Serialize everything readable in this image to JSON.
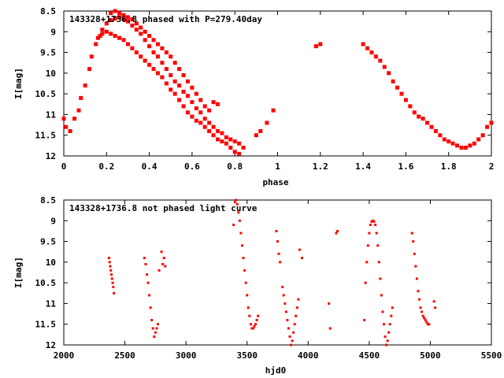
{
  "chart_data": [
    {
      "type": "scatter",
      "title": "143328+1736.8 phased with P=279.40day",
      "xlabel": "phase",
      "ylabel": "I[mag]",
      "xlim": [
        0,
        2
      ],
      "ylim": [
        12,
        8.5
      ],
      "y_inverted": true,
      "xticks": [
        "0",
        "0.2",
        "0.4",
        "0.6",
        "0.8",
        "1",
        "1.2",
        "1.4",
        "1.6",
        "1.8",
        "2"
      ],
      "yticks": [
        "8.5",
        "9",
        "9.5",
        "10",
        "10.5",
        "11",
        "11.5",
        "12"
      ],
      "grid": false,
      "marker_color": "#ff0000",
      "series": [
        {
          "x": [
            0.0,
            0.01,
            0.03,
            0.05,
            0.07,
            0.08,
            0.1,
            0.12,
            0.13,
            0.15,
            0.16,
            0.17,
            0.18,
            0.2,
            0.22,
            0.24,
            0.26,
            0.28,
            0.3,
            0.32,
            0.34,
            0.36,
            0.38,
            0.4,
            0.42,
            0.44,
            0.46,
            0.48,
            0.5,
            0.52,
            0.54,
            0.56,
            0.58,
            0.6,
            0.62,
            0.64,
            0.66,
            0.68,
            0.7,
            0.72,
            0.74,
            0.76,
            0.78,
            0.8,
            0.82,
            0.84,
            0.9,
            0.92,
            0.95,
            0.98,
            1.18,
            1.2,
            1.4,
            1.42,
            1.44,
            1.46,
            1.48,
            1.5,
            1.52,
            1.54,
            1.56,
            1.58,
            1.6,
            1.62,
            1.64,
            1.66,
            1.68,
            1.7,
            1.72,
            1.74,
            1.76,
            1.78,
            1.8,
            1.82,
            1.84,
            1.86,
            1.88,
            1.9,
            1.92,
            1.94,
            1.96,
            1.98,
            2.0
          ],
          "y": [
            11.1,
            11.3,
            11.4,
            11.1,
            10.9,
            10.6,
            10.3,
            9.9,
            9.6,
            9.3,
            9.15,
            9.1,
            9.05,
            9.0,
            9.05,
            9.1,
            9.15,
            9.2,
            9.3,
            9.4,
            9.5,
            9.6,
            9.7,
            9.8,
            9.9,
            10.0,
            10.1,
            10.25,
            10.4,
            10.5,
            10.65,
            10.8,
            10.95,
            11.05,
            11.15,
            11.2,
            11.3,
            11.4,
            11.5,
            11.6,
            11.65,
            11.7,
            11.8,
            11.9,
            11.95,
            11.8,
            11.5,
            11.4,
            11.2,
            10.9,
            9.35,
            9.3,
            9.3,
            9.4,
            9.5,
            9.6,
            9.7,
            9.85,
            10.0,
            10.2,
            10.35,
            10.5,
            10.65,
            10.8,
            10.95,
            11.05,
            11.1,
            11.2,
            11.3,
            11.4,
            11.5,
            11.6,
            11.65,
            11.7,
            11.75,
            11.8,
            11.8,
            11.75,
            11.7,
            11.6,
            11.5,
            11.3,
            11.2
          ]
        },
        {
          "x": [
            0.18,
            0.2,
            0.22,
            0.24,
            0.26,
            0.28,
            0.3,
            0.32,
            0.34,
            0.36,
            0.38,
            0.4,
            0.42,
            0.44,
            0.46,
            0.48,
            0.5,
            0.52,
            0.54,
            0.56,
            0.58,
            0.6,
            0.62,
            0.64,
            0.66,
            0.68,
            0.7,
            0.72,
            0.74,
            0.76,
            0.78,
            0.8,
            0.82
          ],
          "y": [
            8.95,
            8.8,
            8.72,
            8.68,
            8.65,
            8.7,
            8.75,
            8.85,
            8.95,
            9.05,
            9.2,
            9.35,
            9.5,
            9.6,
            9.75,
            9.9,
            10.05,
            10.2,
            10.3,
            10.45,
            10.55,
            10.7,
            10.85,
            10.95,
            11.1,
            11.2,
            11.3,
            11.4,
            11.45,
            11.55,
            11.6,
            11.65,
            11.7
          ]
        },
        {
          "x": [
            0.22,
            0.24,
            0.26,
            0.28,
            0.3,
            0.32,
            0.34,
            0.36,
            0.38,
            0.4,
            0.42,
            0.44,
            0.46,
            0.48,
            0.5,
            0.52,
            0.54,
            0.56,
            0.58,
            0.6,
            0.62,
            0.64,
            0.66,
            0.68,
            0.7,
            0.72
          ],
          "y": [
            8.55,
            8.5,
            8.55,
            8.6,
            8.65,
            8.7,
            8.8,
            8.9,
            9.0,
            9.1,
            9.2,
            9.3,
            9.4,
            9.5,
            9.6,
            9.75,
            9.9,
            10.05,
            10.2,
            10.35,
            10.5,
            10.65,
            10.8,
            10.9,
            10.7,
            10.75
          ]
        }
      ]
    },
    {
      "type": "scatter",
      "title": "143328+1736.8 not phased light curve",
      "xlabel": "hjd0",
      "ylabel": "I[mag]",
      "xlim": [
        2000,
        5500
      ],
      "ylim": [
        12,
        8.5
      ],
      "y_inverted": true,
      "xticks": [
        "2000",
        "2500",
        "3000",
        "3500",
        "4000",
        "4500",
        "5000",
        "5500"
      ],
      "yticks": [
        "8.5",
        "9",
        "9.5",
        "10",
        "10.5",
        "11",
        "11.5",
        "12"
      ],
      "grid": false,
      "marker_color": "#ff0000",
      "series": [
        {
          "x": [
            2370,
            2375,
            2380,
            2385,
            2390,
            2395,
            2400,
            2405,
            2410,
            2660,
            2670,
            2680,
            2690,
            2700,
            2710,
            2720,
            2730,
            2740,
            2750,
            2760,
            2770,
            2780,
            2800,
            2810,
            2820,
            2830,
            3390,
            3400,
            3410,
            3420,
            3430,
            3440,
            3450,
            3460,
            3470,
            3480,
            3490,
            3500,
            3510,
            3520,
            3530,
            3540,
            3550,
            3560,
            3570,
            3580,
            3590,
            3740,
            3750,
            3760,
            3770,
            3790,
            3800,
            3810,
            3820,
            3830,
            3840,
            3850,
            3860,
            3870,
            3880,
            3890,
            3900,
            3910,
            3920,
            3930,
            3950,
            4170,
            4180,
            4230,
            4240,
            4460,
            4470,
            4480,
            4490,
            4500,
            4510,
            4520,
            4530,
            4540,
            4550,
            4560,
            4570,
            4580,
            4590,
            4600,
            4610,
            4620,
            4630,
            4640,
            4650,
            4660,
            4670,
            4680,
            4690,
            4850,
            4860,
            4870,
            4880,
            4890,
            4900,
            4910,
            4920,
            4930,
            4940,
            4950,
            4960,
            4970,
            4980,
            4990,
            5030,
            5040
          ],
          "y": [
            9.9,
            10.0,
            10.1,
            10.2,
            10.3,
            10.4,
            10.5,
            10.6,
            10.75,
            9.9,
            10.05,
            10.3,
            10.5,
            10.8,
            11.1,
            11.4,
            11.6,
            11.8,
            11.7,
            11.6,
            11.5,
            10.2,
            9.75,
            10.05,
            9.9,
            10.1,
            9.1,
            8.55,
            8.5,
            8.6,
            8.8,
            9.0,
            9.3,
            9.6,
            9.9,
            10.2,
            10.5,
            10.8,
            11.1,
            11.3,
            11.5,
            11.6,
            11.6,
            11.55,
            11.5,
            11.4,
            11.3,
            9.25,
            9.5,
            9.8,
            10.0,
            10.6,
            10.8,
            11.0,
            11.2,
            11.4,
            11.6,
            11.8,
            12.0,
            11.9,
            11.7,
            11.5,
            11.3,
            11.1,
            10.9,
            9.7,
            9.9,
            11.0,
            11.6,
            9.3,
            9.25,
            11.4,
            10.5,
            10.0,
            9.6,
            9.3,
            9.1,
            9.02,
            9.0,
            9.02,
            9.1,
            9.3,
            9.6,
            10.0,
            10.4,
            10.8,
            11.2,
            11.5,
            11.8,
            12.0,
            11.9,
            11.7,
            11.5,
            11.3,
            11.1,
            9.3,
            9.5,
            9.8,
            10.1,
            10.4,
            10.7,
            10.9,
            11.1,
            11.2,
            11.3,
            11.35,
            11.4,
            11.45,
            11.5,
            11.5,
            10.95,
            11.1
          ]
        }
      ]
    }
  ]
}
